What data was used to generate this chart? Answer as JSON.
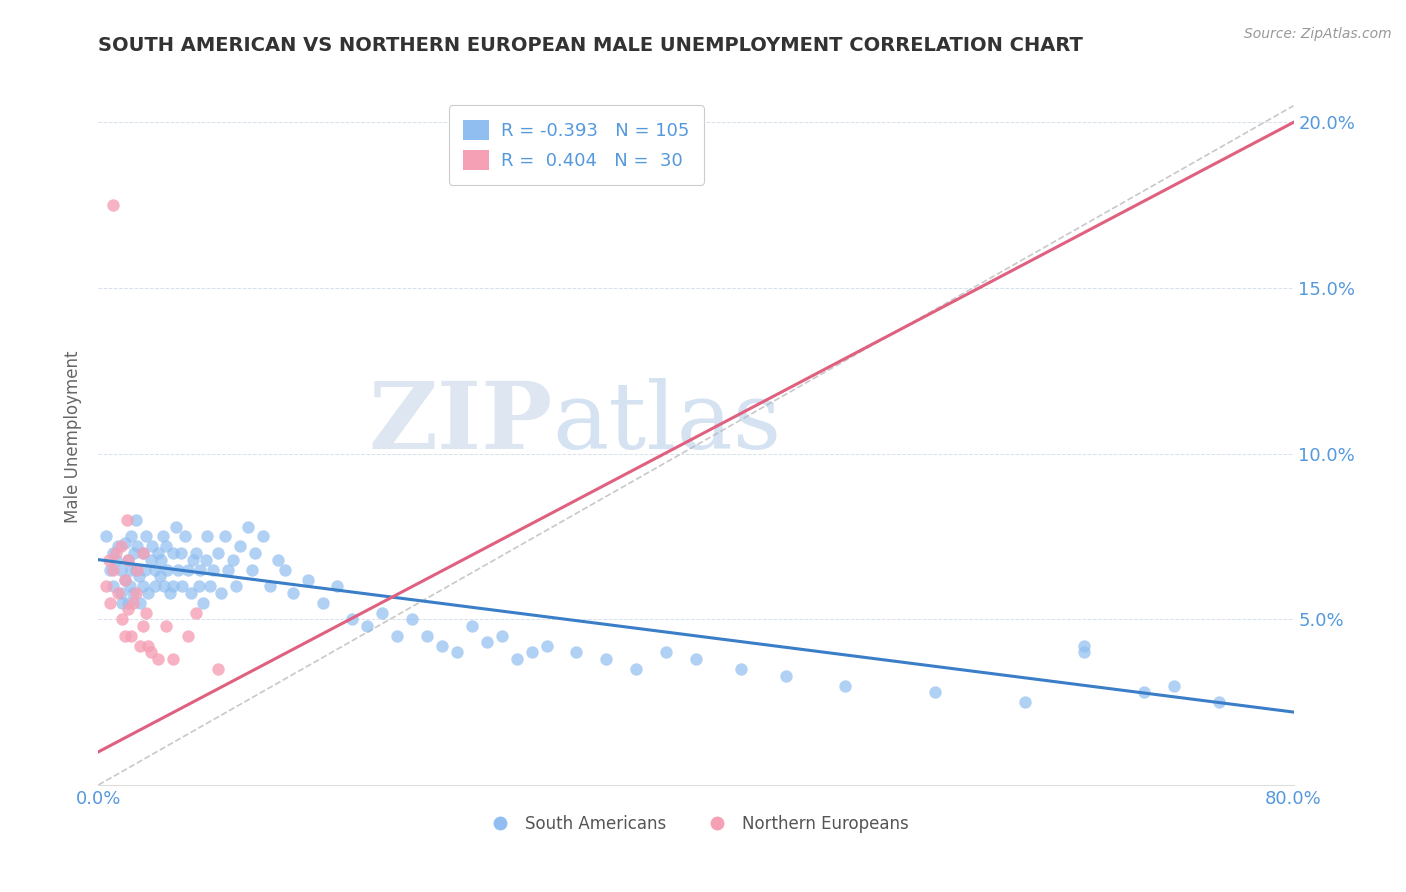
{
  "title": "SOUTH AMERICAN VS NORTHERN EUROPEAN MALE UNEMPLOYMENT CORRELATION CHART",
  "source": "Source: ZipAtlas.com",
  "ylabel": "Male Unemployment",
  "xlim": [
    0.0,
    0.8
  ],
  "ylim": [
    0.0,
    0.21
  ],
  "xticks": [
    0.0,
    0.1,
    0.2,
    0.3,
    0.4,
    0.5,
    0.6,
    0.7,
    0.8
  ],
  "xticklabels": [
    "0.0%",
    "",
    "",
    "",
    "",
    "",
    "",
    "",
    "80.0%"
  ],
  "yticks": [
    0.0,
    0.05,
    0.1,
    0.15,
    0.2
  ],
  "yticklabels": [
    "",
    "5.0%",
    "10.0%",
    "15.0%",
    "20.0%"
  ],
  "blue_color": "#90BEF0",
  "pink_color": "#F5A0B5",
  "blue_line_color": "#3A7EC8",
  "pink_line_color": "#E06080",
  "ref_line_color": "#BBBBBB",
  "title_color": "#333333",
  "axis_label_color": "#5599DD",
  "tick_color": "#5599DD",
  "legend_R_blue": "-0.393",
  "legend_N_blue": "105",
  "legend_R_pink": "0.404",
  "legend_N_pink": "30",
  "watermark_zip": "ZIP",
  "watermark_atlas": "atlas",
  "blue_trend_x0": 0.0,
  "blue_trend_x1": 0.8,
  "blue_trend_y0": 0.068,
  "blue_trend_y1": 0.022,
  "pink_trend_x0": 0.0,
  "pink_trend_x1": 0.8,
  "pink_trend_y0": 0.01,
  "pink_trend_y1": 0.2,
  "ref_line_x": [
    0.0,
    0.8
  ],
  "ref_line_y": [
    0.0,
    0.205
  ],
  "blue_scatter_x": [
    0.005,
    0.008,
    0.01,
    0.01,
    0.012,
    0.013,
    0.015,
    0.015,
    0.016,
    0.018,
    0.018,
    0.02,
    0.02,
    0.021,
    0.022,
    0.022,
    0.023,
    0.024,
    0.025,
    0.025,
    0.026,
    0.027,
    0.028,
    0.03,
    0.03,
    0.031,
    0.032,
    0.033,
    0.035,
    0.036,
    0.038,
    0.038,
    0.04,
    0.041,
    0.042,
    0.043,
    0.044,
    0.045,
    0.046,
    0.048,
    0.05,
    0.05,
    0.052,
    0.053,
    0.055,
    0.056,
    0.058,
    0.06,
    0.062,
    0.063,
    0.065,
    0.067,
    0.068,
    0.07,
    0.072,
    0.073,
    0.075,
    0.077,
    0.08,
    0.082,
    0.085,
    0.087,
    0.09,
    0.092,
    0.095,
    0.1,
    0.103,
    0.105,
    0.11,
    0.115,
    0.12,
    0.125,
    0.13,
    0.14,
    0.15,
    0.16,
    0.17,
    0.18,
    0.19,
    0.2,
    0.21,
    0.22,
    0.23,
    0.24,
    0.25,
    0.26,
    0.27,
    0.28,
    0.29,
    0.3,
    0.32,
    0.34,
    0.36,
    0.38,
    0.4,
    0.43,
    0.46,
    0.5,
    0.56,
    0.62,
    0.66,
    0.7,
    0.75,
    0.66,
    0.72
  ],
  "blue_scatter_y": [
    0.075,
    0.065,
    0.07,
    0.06,
    0.068,
    0.072,
    0.065,
    0.058,
    0.055,
    0.062,
    0.073,
    0.068,
    0.055,
    0.06,
    0.075,
    0.065,
    0.058,
    0.07,
    0.065,
    0.08,
    0.072,
    0.063,
    0.055,
    0.07,
    0.06,
    0.065,
    0.075,
    0.058,
    0.068,
    0.072,
    0.06,
    0.065,
    0.07,
    0.063,
    0.068,
    0.075,
    0.06,
    0.072,
    0.065,
    0.058,
    0.07,
    0.06,
    0.078,
    0.065,
    0.07,
    0.06,
    0.075,
    0.065,
    0.058,
    0.068,
    0.07,
    0.06,
    0.065,
    0.055,
    0.068,
    0.075,
    0.06,
    0.065,
    0.07,
    0.058,
    0.075,
    0.065,
    0.068,
    0.06,
    0.072,
    0.078,
    0.065,
    0.07,
    0.075,
    0.06,
    0.068,
    0.065,
    0.058,
    0.062,
    0.055,
    0.06,
    0.05,
    0.048,
    0.052,
    0.045,
    0.05,
    0.045,
    0.042,
    0.04,
    0.048,
    0.043,
    0.045,
    0.038,
    0.04,
    0.042,
    0.04,
    0.038,
    0.035,
    0.04,
    0.038,
    0.035,
    0.033,
    0.03,
    0.028,
    0.025,
    0.04,
    0.028,
    0.025,
    0.042,
    0.03
  ],
  "pink_scatter_x": [
    0.005,
    0.007,
    0.008,
    0.01,
    0.01,
    0.012,
    0.013,
    0.015,
    0.016,
    0.018,
    0.018,
    0.019,
    0.02,
    0.02,
    0.022,
    0.023,
    0.025,
    0.026,
    0.028,
    0.03,
    0.03,
    0.032,
    0.033,
    0.035,
    0.04,
    0.045,
    0.05,
    0.06,
    0.065,
    0.08
  ],
  "pink_scatter_y": [
    0.06,
    0.068,
    0.055,
    0.175,
    0.065,
    0.07,
    0.058,
    0.072,
    0.05,
    0.045,
    0.062,
    0.08,
    0.053,
    0.068,
    0.045,
    0.055,
    0.058,
    0.065,
    0.042,
    0.07,
    0.048,
    0.052,
    0.042,
    0.04,
    0.038,
    0.048,
    0.038,
    0.045,
    0.052,
    0.035
  ]
}
